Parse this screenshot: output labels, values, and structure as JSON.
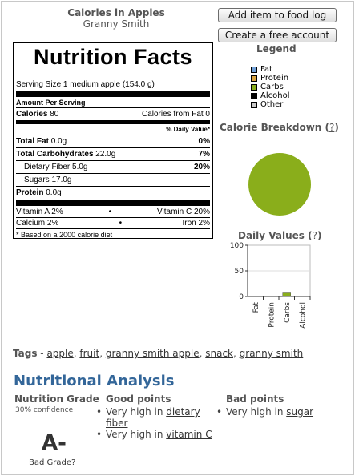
{
  "food": {
    "title": "Calories in Apples",
    "variety": "Granny Smith"
  },
  "buttons": {
    "add": "Add item to food log",
    "create": "Create a free account"
  },
  "nutrition": {
    "title": "Nutrition Facts",
    "serving": "Serving Size 1 medium apple (154.0 g)",
    "amount_per_serving": "Amount Per Serving",
    "calories_label": "Calories",
    "calories_value": "80",
    "calories_from_fat": "Calories from Fat 0",
    "dv_header": "% Daily Value*",
    "total_fat": "Total Fat",
    "total_fat_value": "0.0g",
    "total_fat_pct": "0%",
    "total_carb": "Total Carbohydrates",
    "total_carb_value": "22.0g",
    "total_carb_pct": "7%",
    "fiber": "Dietary Fiber 5.0g",
    "fiber_pct": "20%",
    "sugars": "Sugars 17.0g",
    "protein": "Protein",
    "protein_value": "0.0g",
    "vitamin_a": "Vitamin A 2%",
    "vitamin_c": "Vitamin C 20%",
    "calcium": "Calcium 2%",
    "iron": "Iron 2%",
    "dot": "•",
    "footnote": "* Based on a",
    "footnote_link": "2000 calorie diet"
  },
  "legend": {
    "title": "Legend",
    "items": [
      {
        "label": "Fat",
        "color": "#6f9fd6"
      },
      {
        "label": "Protein",
        "color": "#d9a441"
      },
      {
        "label": "Carbs",
        "color": "#8aae1b"
      },
      {
        "label": "Alcohol",
        "color": "#000000"
      },
      {
        "label": "Other",
        "color": "#c8c8c8"
      }
    ]
  },
  "calorie_breakdown": {
    "title": "Calorie Breakdown",
    "help": "?"
  },
  "daily_values": {
    "title": "Daily Values",
    "help": "?"
  },
  "chart_data": [
    {
      "type": "pie",
      "title": "Calorie Breakdown",
      "categories": [
        "Carbs"
      ],
      "values": [
        100
      ],
      "colors": [
        "#8aae1b"
      ]
    },
    {
      "type": "bar",
      "title": "Daily Values",
      "categories": [
        "Fat",
        "Protein",
        "Carbs",
        "Alcohol"
      ],
      "values": [
        0,
        0,
        7,
        0
      ],
      "ylim": [
        0,
        100
      ],
      "yticks": [
        0,
        50,
        100
      ],
      "bar_color": "#8aae1b"
    }
  ],
  "tags": {
    "label": "Tags",
    "sep": " - ",
    "items": [
      "apple",
      "fruit",
      "granny smith apple",
      "snack",
      "granny smith"
    ]
  },
  "analysis": {
    "title": "Nutritional Analysis",
    "grade_header": "Nutrition Grade",
    "confidence": "30% confidence",
    "grade": "A-",
    "bad_grade": "Bad Grade?",
    "good_header": "Good points",
    "good_points": [
      {
        "prefix": "Very high in ",
        "link": "dietary fiber"
      },
      {
        "prefix": "Very high in ",
        "link": "vitamin C"
      }
    ],
    "bad_header": "Bad points",
    "bad_points": [
      {
        "prefix": "Very high in ",
        "link": "sugar"
      }
    ]
  }
}
